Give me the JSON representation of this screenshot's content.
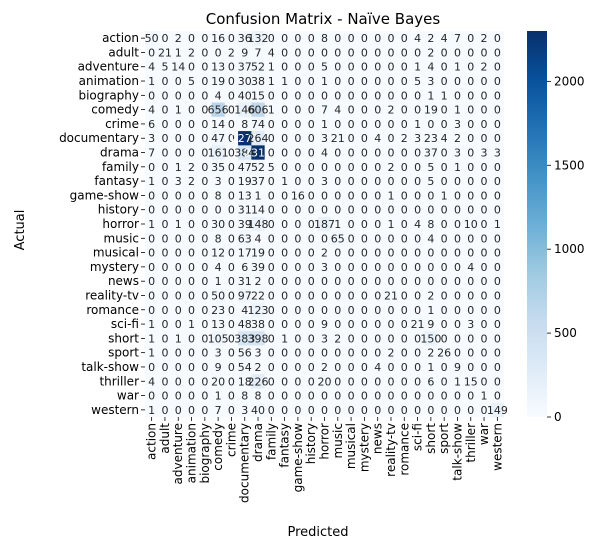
{
  "chart_data": {
    "type": "heatmap",
    "title": "Confusion Matrix - Naïve Bayes",
    "xlabel": "Predicted",
    "ylabel": "Actual",
    "colormap": "Blues",
    "colorbar": {
      "min": 0,
      "max": 2300,
      "ticks": [
        0,
        500,
        1000,
        1500,
        2000
      ],
      "low_color": "#f7fbff",
      "high_color": "#08306b"
    },
    "labels": [
      "action",
      "adult",
      "adventure",
      "animation",
      "biography",
      "comedy",
      "crime",
      "documentary",
      "drama",
      "family",
      "fantasy",
      "game-show",
      "history",
      "horror",
      "music",
      "musical",
      "mystery",
      "news",
      "reality-tv",
      "romance",
      "sci-fi",
      "short",
      "sport",
      "talk-show",
      "thriller",
      "war",
      "western"
    ],
    "matrix": [
      [
        50,
        0,
        2,
        0,
        0,
        16,
        0,
        36,
        132,
        0,
        0,
        0,
        0,
        8,
        0,
        0,
        0,
        0,
        0,
        0,
        4,
        2,
        4,
        7,
        0,
        2,
        0
      ],
      [
        0,
        21,
        1,
        2,
        0,
        0,
        2,
        9,
        7,
        4,
        0,
        0,
        0,
        0,
        0,
        0,
        0,
        0,
        0,
        0,
        0,
        2,
        0,
        0,
        0,
        0,
        0
      ],
      [
        4,
        5,
        14,
        0,
        0,
        13,
        0,
        37,
        52,
        1,
        0,
        0,
        0,
        5,
        0,
        0,
        0,
        0,
        0,
        0,
        1,
        4,
        0,
        1,
        0,
        2,
        0
      ],
      [
        1,
        0,
        0,
        5,
        0,
        19,
        0,
        30,
        38,
        1,
        1,
        0,
        0,
        1,
        0,
        0,
        0,
        0,
        0,
        0,
        5,
        3,
        0,
        0,
        0,
        0,
        0
      ],
      [
        0,
        0,
        0,
        0,
        0,
        4,
        0,
        40,
        15,
        0,
        0,
        0,
        0,
        0,
        0,
        0,
        0,
        0,
        0,
        0,
        0,
        1,
        1,
        0,
        0,
        0,
        0
      ],
      [
        4,
        0,
        1,
        0,
        0,
        656,
        0,
        146,
        606,
        1,
        0,
        0,
        0,
        7,
        4,
        0,
        0,
        0,
        2,
        0,
        0,
        19,
        0,
        1,
        0,
        0,
        0
      ],
      [
        6,
        0,
        0,
        0,
        0,
        14,
        0,
        8,
        74,
        0,
        0,
        0,
        0,
        1,
        0,
        0,
        0,
        0,
        0,
        0,
        1,
        0,
        0,
        3,
        0,
        0,
        0
      ],
      [
        3,
        0,
        0,
        0,
        0,
        47,
        0,
        2279,
        264,
        0,
        0,
        0,
        0,
        3,
        21,
        0,
        0,
        4,
        0,
        2,
        3,
        23,
        4,
        2,
        0,
        0,
        0
      ],
      [
        7,
        0,
        0,
        0,
        0,
        161,
        0,
        384,
        2317,
        0,
        0,
        0,
        0,
        4,
        0,
        0,
        0,
        0,
        0,
        0,
        0,
        37,
        0,
        3,
        0,
        3,
        3
      ],
      [
        0,
        0,
        1,
        2,
        0,
        35,
        0,
        47,
        52,
        5,
        0,
        0,
        0,
        0,
        0,
        0,
        0,
        0,
        2,
        0,
        0,
        5,
        0,
        1,
        0,
        0,
        0
      ],
      [
        1,
        0,
        3,
        2,
        0,
        3,
        0,
        19,
        37,
        0,
        1,
        0,
        0,
        3,
        0,
        0,
        0,
        0,
        0,
        0,
        0,
        5,
        0,
        0,
        0,
        0,
        0
      ],
      [
        0,
        0,
        0,
        0,
        0,
        8,
        0,
        13,
        1,
        0,
        0,
        16,
        0,
        0,
        0,
        0,
        0,
        0,
        1,
        0,
        0,
        0,
        1,
        0,
        0,
        0,
        0
      ],
      [
        0,
        0,
        0,
        0,
        0,
        0,
        0,
        31,
        14,
        0,
        0,
        0,
        0,
        0,
        0,
        0,
        0,
        0,
        0,
        0,
        0,
        0,
        0,
        0,
        0,
        0,
        0
      ],
      [
        1,
        0,
        1,
        0,
        0,
        30,
        0,
        39,
        148,
        0,
        0,
        0,
        0,
        187,
        1,
        0,
        0,
        0,
        1,
        0,
        4,
        8,
        0,
        0,
        10,
        0,
        1
      ],
      [
        0,
        0,
        0,
        0,
        0,
        8,
        0,
        63,
        4,
        0,
        0,
        0,
        0,
        0,
        65,
        0,
        0,
        0,
        0,
        0,
        0,
        4,
        0,
        0,
        0,
        0,
        0
      ],
      [
        0,
        0,
        0,
        0,
        0,
        12,
        0,
        17,
        19,
        0,
        0,
        0,
        0,
        2,
        0,
        0,
        0,
        0,
        0,
        0,
        0,
        0,
        0,
        0,
        0,
        0,
        0
      ],
      [
        0,
        0,
        0,
        0,
        0,
        4,
        0,
        6,
        39,
        0,
        0,
        0,
        0,
        3,
        0,
        0,
        0,
        0,
        0,
        0,
        0,
        0,
        0,
        0,
        4,
        0,
        0
      ],
      [
        0,
        0,
        0,
        0,
        0,
        1,
        0,
        31,
        2,
        0,
        0,
        0,
        0,
        0,
        0,
        0,
        0,
        0,
        0,
        0,
        0,
        0,
        0,
        0,
        0,
        0,
        0
      ],
      [
        0,
        0,
        0,
        0,
        0,
        50,
        0,
        97,
        22,
        0,
        0,
        0,
        0,
        0,
        0,
        0,
        0,
        0,
        21,
        0,
        0,
        2,
        0,
        0,
        0,
        0,
        0
      ],
      [
        0,
        0,
        0,
        0,
        0,
        23,
        0,
        4,
        123,
        0,
        0,
        0,
        0,
        0,
        0,
        0,
        0,
        0,
        0,
        0,
        0,
        1,
        0,
        0,
        0,
        0,
        0
      ],
      [
        1,
        0,
        0,
        1,
        0,
        13,
        0,
        48,
        38,
        0,
        0,
        0,
        0,
        9,
        0,
        0,
        0,
        0,
        0,
        0,
        21,
        9,
        0,
        0,
        3,
        0,
        0
      ],
      [
        1,
        0,
        1,
        0,
        0,
        105,
        0,
        383,
        398,
        0,
        1,
        0,
        0,
        3,
        2,
        0,
        0,
        0,
        0,
        0,
        0,
        150,
        0,
        0,
        0,
        0,
        0
      ],
      [
        1,
        0,
        0,
        0,
        0,
        3,
        0,
        56,
        3,
        0,
        0,
        0,
        0,
        0,
        0,
        0,
        0,
        0,
        2,
        0,
        0,
        2,
        26,
        0,
        0,
        0,
        0
      ],
      [
        0,
        0,
        0,
        0,
        0,
        9,
        0,
        54,
        2,
        0,
        0,
        0,
        0,
        2,
        0,
        0,
        0,
        4,
        0,
        0,
        0,
        1,
        0,
        9,
        0,
        0,
        0
      ],
      [
        4,
        0,
        0,
        0,
        0,
        20,
        0,
        18,
        226,
        0,
        0,
        0,
        0,
        20,
        0,
        0,
        0,
        0,
        0,
        0,
        0,
        6,
        0,
        1,
        15,
        0,
        0
      ],
      [
        0,
        0,
        0,
        0,
        0,
        1,
        0,
        8,
        8,
        0,
        0,
        0,
        0,
        0,
        0,
        0,
        0,
        0,
        0,
        0,
        0,
        0,
        0,
        0,
        0,
        1,
        0
      ],
      [
        1,
        0,
        0,
        0,
        0,
        7,
        0,
        3,
        40,
        0,
        0,
        0,
        0,
        0,
        0,
        0,
        0,
        0,
        0,
        0,
        0,
        0,
        0,
        0,
        0,
        0,
        149
      ]
    ]
  }
}
